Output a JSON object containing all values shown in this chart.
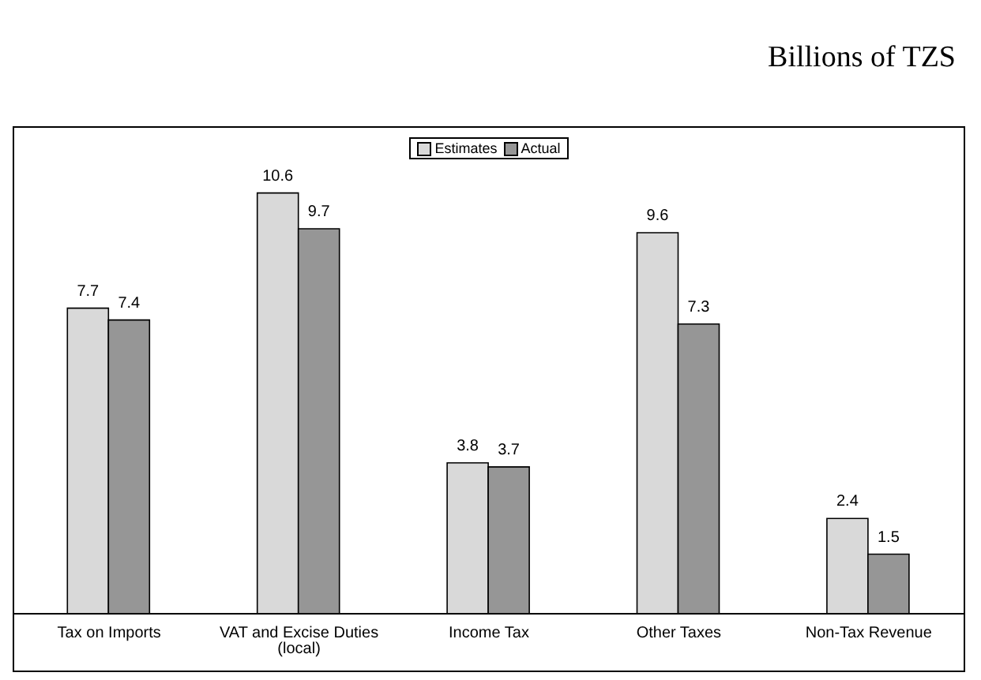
{
  "chart_data": {
    "type": "bar",
    "title": "Billions of TZS",
    "categories": [
      "Tax on Imports",
      "VAT and Excise Duties (local)",
      "Income Tax",
      "Other Taxes",
      "Non-Tax Revenue"
    ],
    "series": [
      {
        "name": "Estimates",
        "color": "#d9d9d9",
        "values": [
          7.7,
          10.6,
          3.8,
          9.6,
          2.4
        ]
      },
      {
        "name": "Actual",
        "color": "#969696",
        "values": [
          7.4,
          9.7,
          3.7,
          7.3,
          1.5
        ]
      }
    ],
    "data_labels": true,
    "legend": "top",
    "grid": false,
    "tick_labels": "x"
  }
}
